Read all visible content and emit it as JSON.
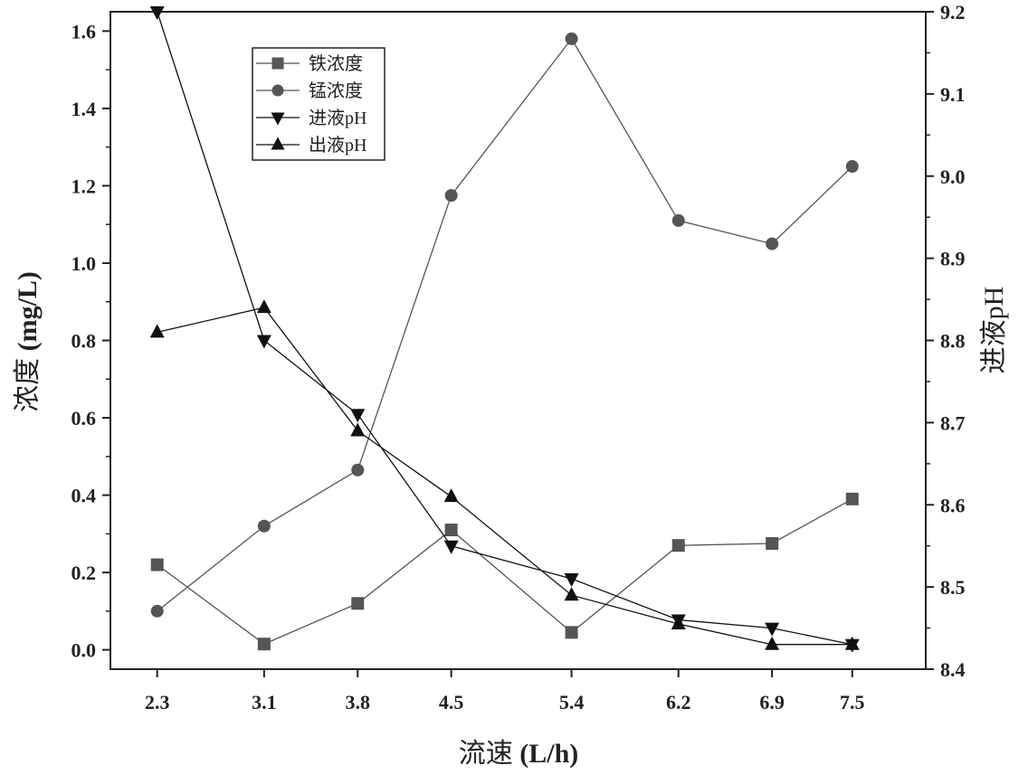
{
  "chart_data": {
    "type": "line",
    "title": "",
    "xlabel": "流速 (L/h)",
    "xlabel_parts": [
      "流速 ",
      "(L/h)"
    ],
    "ylabel_left": "浓度 (mg/L)",
    "ylabel_left_parts": [
      "浓度 ",
      "(mg/L)"
    ],
    "ylabel_right": "进液pH",
    "categories": [
      "2.3",
      "3.1",
      "3.8",
      "4.5",
      "5.4",
      "6.2",
      "6.9",
      "7.5"
    ],
    "x": [
      2.3,
      3.1,
      3.8,
      4.5,
      5.4,
      6.2,
      6.9,
      7.5
    ],
    "xlim": [
      1.95,
      8.05
    ],
    "y_left_lim": [
      -0.05,
      1.65
    ],
    "y_left_ticks": [
      "0.0",
      "0.2",
      "0.4",
      "0.6",
      "0.8",
      "1.0",
      "1.2",
      "1.4",
      "1.6"
    ],
    "y_right_lim": [
      8.4,
      9.2
    ],
    "y_right_ticks": [
      "8.4",
      "8.5",
      "8.6",
      "8.7",
      "8.8",
      "8.9",
      "9.0",
      "9.1",
      "9.2"
    ],
    "grid": false,
    "legend_position": "top-left",
    "series": [
      {
        "name": "铁浓度",
        "axis": "left",
        "marker": "square",
        "color": "#555555",
        "values": [
          0.22,
          0.015,
          0.12,
          0.31,
          0.045,
          0.27,
          0.275,
          0.39
        ]
      },
      {
        "name": "锰浓度",
        "axis": "left",
        "marker": "circle",
        "color": "#555555",
        "values": [
          0.1,
          0.32,
          0.465,
          1.175,
          1.58,
          1.11,
          1.05,
          1.25
        ]
      },
      {
        "name": "进液pH",
        "axis": "right",
        "marker": "triangle-down",
        "color": "#111111",
        "values": [
          9.2,
          8.8,
          8.71,
          8.55,
          8.51,
          8.46,
          8.45,
          8.43
        ]
      },
      {
        "name": "出液pH",
        "axis": "right",
        "marker": "triangle-up",
        "color": "#111111",
        "values": [
          8.81,
          8.84,
          8.69,
          8.61,
          8.49,
          8.455,
          8.43,
          8.43
        ]
      }
    ]
  }
}
